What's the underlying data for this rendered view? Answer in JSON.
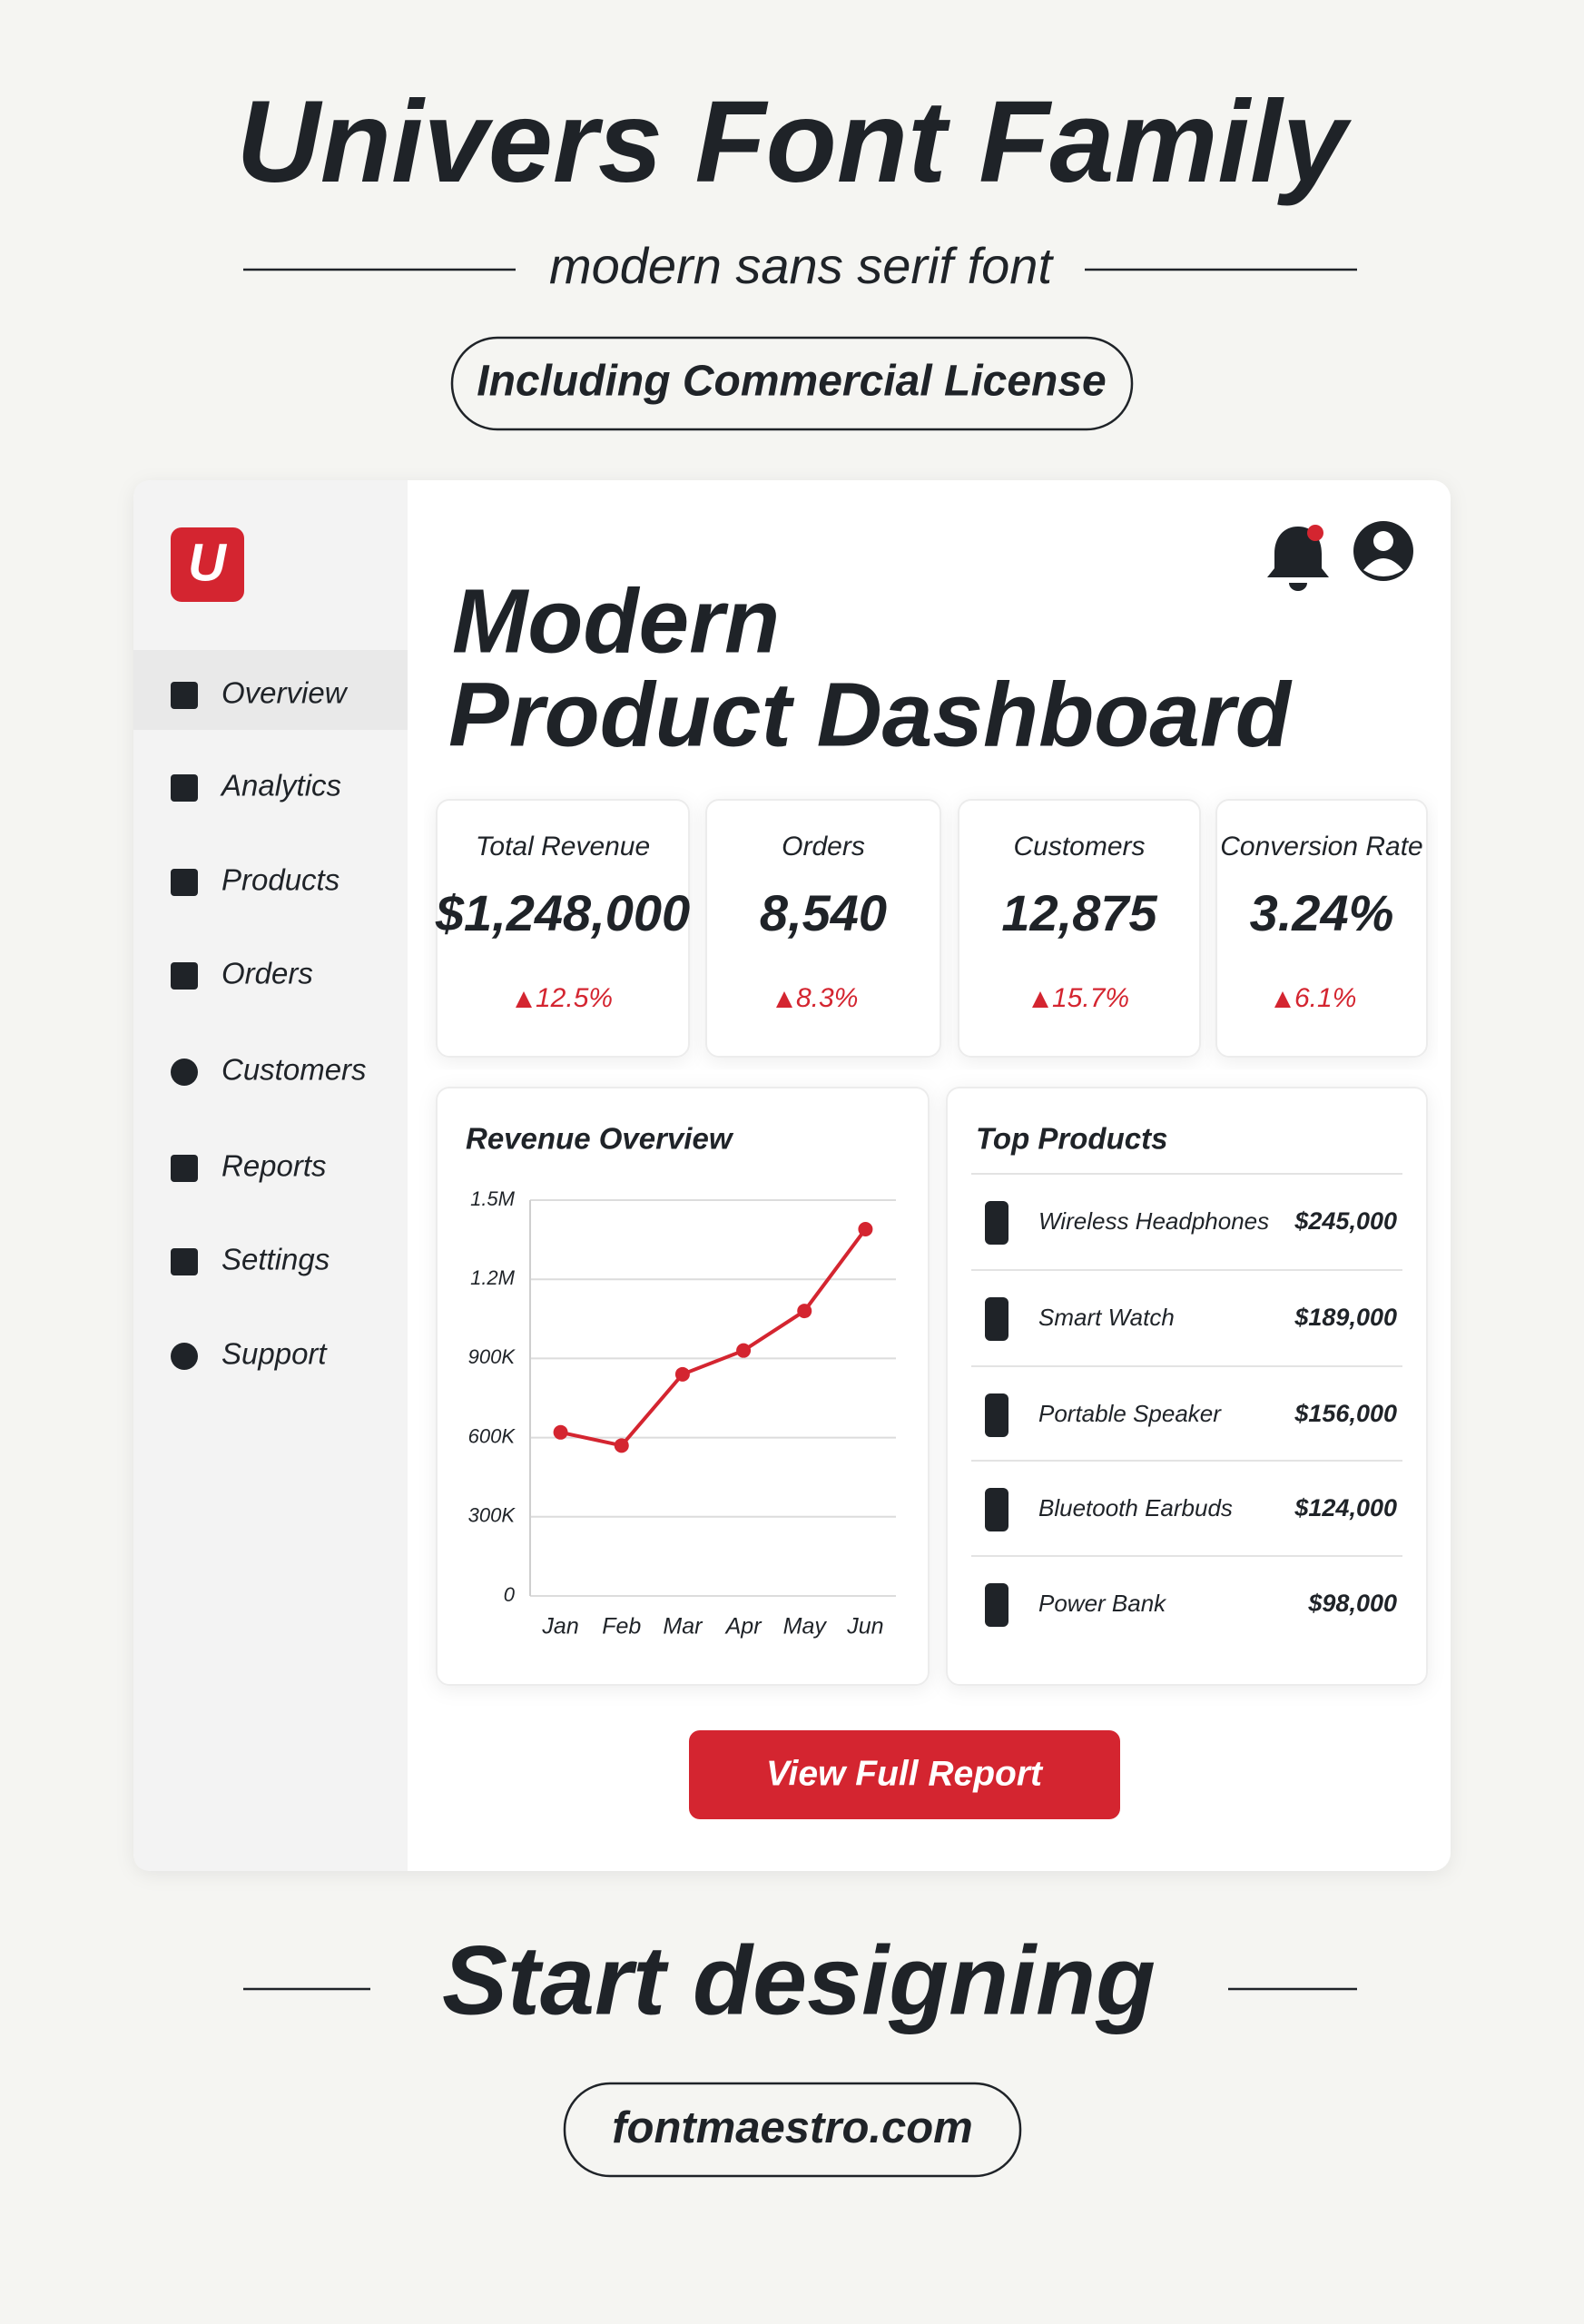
{
  "header": {
    "title": "Univers Font Family",
    "subtitle": "modern sans serif font",
    "badge": "Including Commercial License"
  },
  "dashboard": {
    "logo": "U",
    "nav": [
      "Overview",
      "Analytics",
      "Products",
      "Orders",
      "Customers",
      "Reports",
      "Settings",
      "Support"
    ],
    "title_line1": "Modern",
    "title_line2": "Product Dashboard",
    "kpis": [
      {
        "label": "Total Revenue",
        "value": "$1,248,000",
        "delta": "12.5%"
      },
      {
        "label": "Orders",
        "value": "8,540",
        "delta": "8.3%"
      },
      {
        "label": "Customers",
        "value": "12,875",
        "delta": "15.7%"
      },
      {
        "label": "Conversion Rate",
        "value": "3.24%",
        "delta": "6.1%"
      }
    ],
    "revenue_chart": {
      "type": "line",
      "title": "Revenue Overview",
      "categories": [
        "Jan",
        "Feb",
        "Mar",
        "Apr",
        "May",
        "Jun"
      ],
      "values": [
        620000,
        570000,
        840000,
        930000,
        1080000,
        1390000
      ],
      "color": "#d42530",
      "ylim": [
        0,
        1500000
      ],
      "yticks": [
        0,
        {
          "value": 300000,
          "label": "300K"
        },
        {
          "value": 600000,
          "label": "600K"
        },
        {
          "value": 900000,
          "label": "900K"
        },
        {
          "value": 1200000,
          "label": "1.2M"
        },
        {
          "value": 1500000,
          "label": "1.5M"
        }
      ],
      "grid": true
    },
    "top_products": {
      "title": "Top Products",
      "rows": [
        {
          "name": "Wireless Headphones",
          "price": "$245,000"
        },
        {
          "name": "Smart Watch",
          "price": "$189,000"
        },
        {
          "name": "Portable Speaker",
          "price": "$156,000"
        },
        {
          "name": "Bluetooth Earbuds",
          "price": "$124,000"
        },
        {
          "name": "Power Bank",
          "price": "$98,000"
        }
      ]
    },
    "button": "View Full Report"
  },
  "footer": {
    "cta": "Start designing",
    "url": "fontmaestro.com"
  }
}
